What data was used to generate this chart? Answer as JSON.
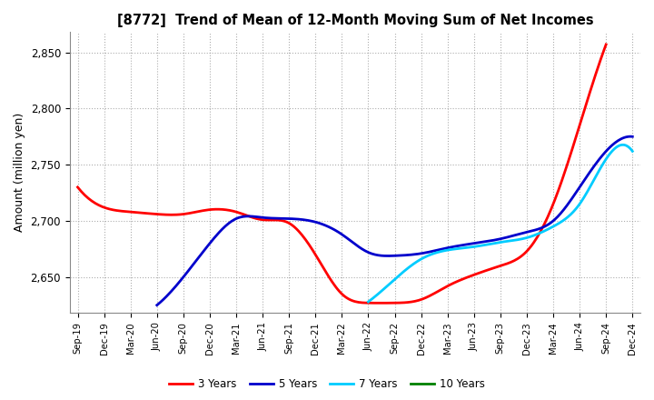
{
  "title": "[8772]  Trend of Mean of 12-Month Moving Sum of Net Incomes",
  "ylabel": "Amount (million yen)",
  "ylim": [
    2618,
    2868
  ],
  "yticks": [
    2650,
    2700,
    2750,
    2800,
    2850
  ],
  "background_color": "#ffffff",
  "grid_color": "#999999",
  "x_labels": [
    "Sep-19",
    "Dec-19",
    "Mar-20",
    "Jun-20",
    "Sep-20",
    "Dec-20",
    "Mar-21",
    "Jun-21",
    "Sep-21",
    "Dec-21",
    "Mar-22",
    "Jun-22",
    "Sep-22",
    "Dec-22",
    "Mar-23",
    "Jun-23",
    "Sep-23",
    "Dec-23",
    "Mar-24",
    "Jun-24",
    "Sep-24",
    "Dec-24"
  ],
  "series": {
    "3 Years": {
      "color": "#ff0000",
      "data": [
        2730,
        2712,
        2708,
        2706,
        2706,
        2710,
        2708,
        2701,
        2698,
        2670,
        2635,
        2627,
        2627,
        2630,
        2642,
        2652,
        2660,
        2673,
        2715,
        2785,
        2857,
        null
      ]
    },
    "5 Years": {
      "color": "#0000cc",
      "data": [
        null,
        null,
        null,
        2625,
        2650,
        2680,
        2702,
        2703,
        2702,
        2699,
        2688,
        2672,
        2669,
        2671,
        2676,
        2680,
        2684,
        2690,
        2700,
        2730,
        2762,
        2775
      ]
    },
    "7 Years": {
      "color": "#00ccff",
      "data": [
        null,
        null,
        null,
        null,
        null,
        null,
        null,
        null,
        null,
        null,
        null,
        2628,
        2648,
        2666,
        2674,
        2677,
        2681,
        2685,
        2695,
        2715,
        2755,
        2762
      ]
    },
    "10 Years": {
      "color": "#008000",
      "data": [
        null,
        null,
        null,
        null,
        null,
        null,
        null,
        null,
        null,
        null,
        null,
        null,
        null,
        null,
        null,
        null,
        null,
        null,
        null,
        null,
        null,
        null
      ]
    }
  },
  "legend_order": [
    "3 Years",
    "5 Years",
    "7 Years",
    "10 Years"
  ]
}
